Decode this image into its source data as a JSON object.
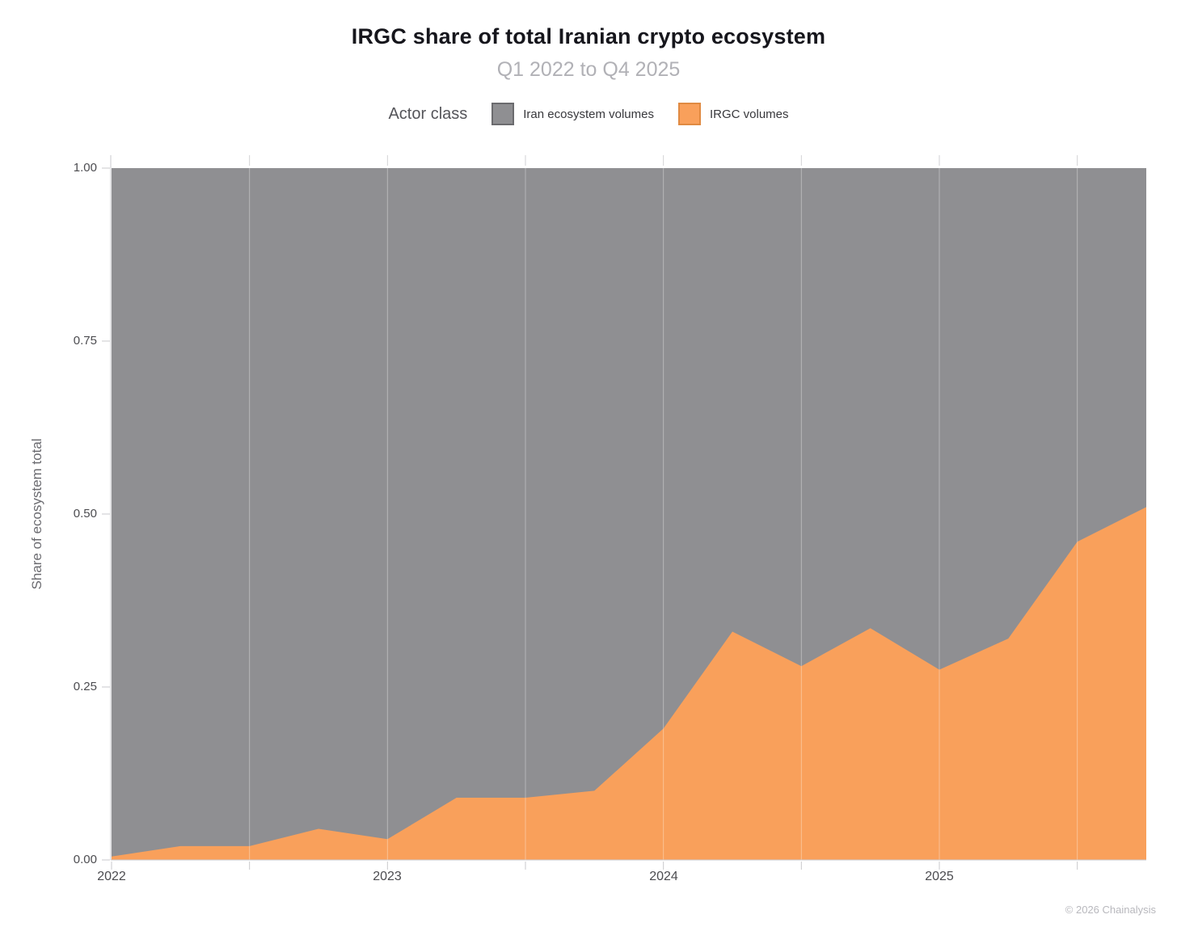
{
  "title": "IRGC share of total Iranian crypto ecosystem",
  "subtitle": "Q1 2022 to Q4 2025",
  "legend": {
    "label": "Actor class",
    "items": [
      {
        "label": "Iran ecosystem volumes",
        "color": "#8f8f92"
      },
      {
        "label": "IRGC volumes",
        "color": "#f9a05b"
      }
    ]
  },
  "ylabel": "Share of ecosystem total",
  "footer": {
    "text": "© 2026 Chainalysis"
  },
  "chart_data": {
    "type": "area",
    "stacked": true,
    "normalized": true,
    "title": "IRGC share of total Iranian crypto ecosystem",
    "subtitle": "Q1 2022 to Q4 2025",
    "xlabel": "",
    "ylabel": "Share of ecosystem total",
    "ylim": [
      0,
      1
    ],
    "legend_position": "top",
    "grid": "vertical-half-year",
    "x": [
      "Q1 2022",
      "Q2 2022",
      "Q3 2022",
      "Q4 2022",
      "Q1 2023",
      "Q2 2023",
      "Q3 2023",
      "Q4 2023",
      "Q1 2024",
      "Q2 2024",
      "Q3 2024",
      "Q4 2024",
      "Q1 2025",
      "Q2 2025",
      "Q3 2025",
      "Q4 2025"
    ],
    "series": [
      {
        "name": "IRGC volumes",
        "color": "#f9a05b",
        "values": [
          0.005,
          0.02,
          0.02,
          0.045,
          0.03,
          0.09,
          0.09,
          0.1,
          0.19,
          0.33,
          0.28,
          0.335,
          0.275,
          0.32,
          0.46,
          0.51
        ]
      },
      {
        "name": "Iran ecosystem volumes",
        "color": "#8f8f92",
        "values": [
          0.995,
          0.98,
          0.98,
          0.955,
          0.97,
          0.91,
          0.91,
          0.9,
          0.81,
          0.67,
          0.72,
          0.665,
          0.725,
          0.68,
          0.54,
          0.49
        ]
      }
    ],
    "yticks": [
      "0.00",
      "0.25",
      "0.50",
      "0.75",
      "1.00"
    ],
    "ytick_values": [
      0,
      0.25,
      0.5,
      0.75,
      1
    ],
    "xticks": [
      "2022",
      "2023",
      "2024",
      "2025"
    ],
    "xtick_indices": [
      0,
      4,
      8,
      12
    ]
  }
}
